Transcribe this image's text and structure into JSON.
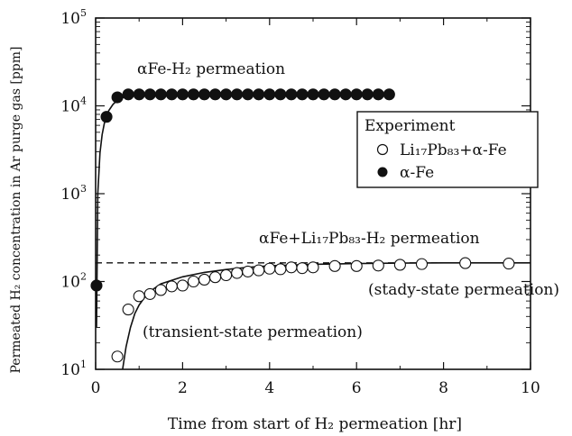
{
  "chart_data": {
    "type": "scatter",
    "xlabel": "Time from start of H₂ permeation [hr]",
    "ylabel": "Permeated H₂ concentration in Ar purge gas [ppm]",
    "xlim": [
      0,
      10
    ],
    "ylim": [
      10,
      100000
    ],
    "yscale": "log",
    "x_ticks": [
      0,
      2,
      4,
      6,
      8,
      10
    ],
    "y_ticks": [
      {
        "value": 10,
        "base": "10",
        "exp": "1"
      },
      {
        "value": 100,
        "base": "10",
        "exp": "2"
      },
      {
        "value": 1000,
        "base": "10",
        "exp": "3"
      },
      {
        "value": 10000,
        "base": "10",
        "exp": "4"
      },
      {
        "value": 100000,
        "base": "10",
        "exp": "5"
      }
    ],
    "legend": {
      "title": "Experiment",
      "position": "top-right",
      "entries": [
        {
          "label": "Li₁₇Pb₈₃+α-Fe",
          "marker": "open-circle"
        },
        {
          "label": "α-Fe",
          "marker": "filled-circle"
        }
      ]
    },
    "annotations": {
      "fe_label": "αFe-H₂ permeation",
      "lipb_label": "αFe+Li₁₇Pb₈₃-H₂ permeation",
      "steady": "(stady-state permeation)",
      "transient": "(transient-state permeation)"
    },
    "series": [
      {
        "name": "α-Fe",
        "marker": "filled",
        "x": [
          0.02,
          0.25,
          0.5,
          0.75,
          1.0,
          1.25,
          1.5,
          1.75,
          2.0,
          2.25,
          2.5,
          2.75,
          3.0,
          3.25,
          3.5,
          3.75,
          4.0,
          4.25,
          4.5,
          4.75,
          5.0,
          5.25,
          5.5,
          5.75,
          6.0,
          6.25,
          6.5,
          6.75
        ],
        "y": [
          90,
          7500,
          12500,
          13500,
          13500,
          13500,
          13500,
          13500,
          13500,
          13500,
          13500,
          13500,
          13500,
          13500,
          13500,
          13500,
          13500,
          13500,
          13500,
          13500,
          13500,
          13500,
          13500,
          13500,
          13500,
          13500,
          13500,
          13500
        ]
      },
      {
        "name": "Li₁₇Pb₈₃+α-Fe",
        "marker": "open",
        "x": [
          0.5,
          0.75,
          1.0,
          1.25,
          1.5,
          1.75,
          2.0,
          2.25,
          2.5,
          2.75,
          3.0,
          3.25,
          3.5,
          3.75,
          4.0,
          4.25,
          4.5,
          4.75,
          5.0,
          5.5,
          6.0,
          6.5,
          7.0,
          7.5,
          8.5,
          9.5
        ],
        "y": [
          14,
          48,
          68,
          72,
          80,
          88,
          90,
          100,
          105,
          112,
          118,
          125,
          130,
          134,
          140,
          138,
          145,
          142,
          145,
          150,
          150,
          152,
          155,
          158,
          162,
          160
        ]
      }
    ],
    "fit_curves": [
      {
        "name": "fe-fit",
        "x": [
          0.02,
          0.05,
          0.1,
          0.15,
          0.2,
          0.3,
          0.4,
          0.5,
          0.6,
          0.8,
          1.0,
          1.5,
          2.0,
          4.0,
          6.8
        ],
        "y": [
          30,
          1000,
          2900,
          4700,
          6300,
          8800,
          10400,
          11600,
          12300,
          13000,
          13300,
          13500,
          13500,
          13500,
          13500
        ]
      },
      {
        "name": "lipb-fit",
        "x": [
          0.62,
          0.7,
          0.8,
          0.9,
          1.0,
          1.2,
          1.5,
          2.0,
          2.5,
          3.0,
          3.5,
          4.0,
          5.0,
          6.0,
          7.0,
          8.0,
          9.0,
          10.0
        ],
        "y": [
          10,
          18,
          30,
          43,
          54,
          74,
          94,
          113,
          127,
          137,
          145,
          151,
          157,
          160,
          162,
          163,
          163,
          163
        ]
      }
    ],
    "steady_state_level": 163
  }
}
